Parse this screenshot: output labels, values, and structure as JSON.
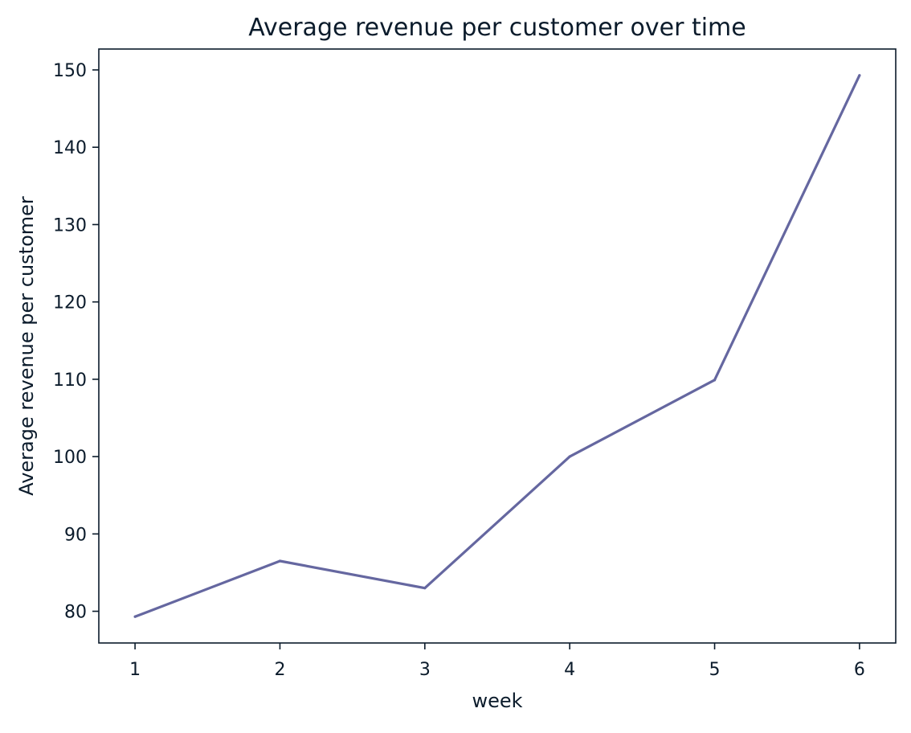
{
  "chart_data": {
    "type": "line",
    "title": "Average revenue per customer over time",
    "xlabel": "week",
    "ylabel": "Average revenue per customer",
    "x": [
      1,
      2,
      3,
      4,
      5,
      6
    ],
    "series": [
      {
        "values": [
          79.3,
          86.5,
          83.0,
          100.0,
          109.9,
          149.3
        ]
      }
    ],
    "xlim": [
      0.75,
      6.25
    ],
    "ylim": [
      75.9,
      152.7
    ],
    "xticks": [
      1,
      2,
      3,
      4,
      5,
      6
    ],
    "yticks": [
      80,
      90,
      100,
      110,
      120,
      130,
      140,
      150
    ],
    "grid": false,
    "colors": {
      "line": "#6567a0",
      "axes": "#0b1b2b",
      "text": "#0b1b2b",
      "background": "#ffffff"
    }
  }
}
